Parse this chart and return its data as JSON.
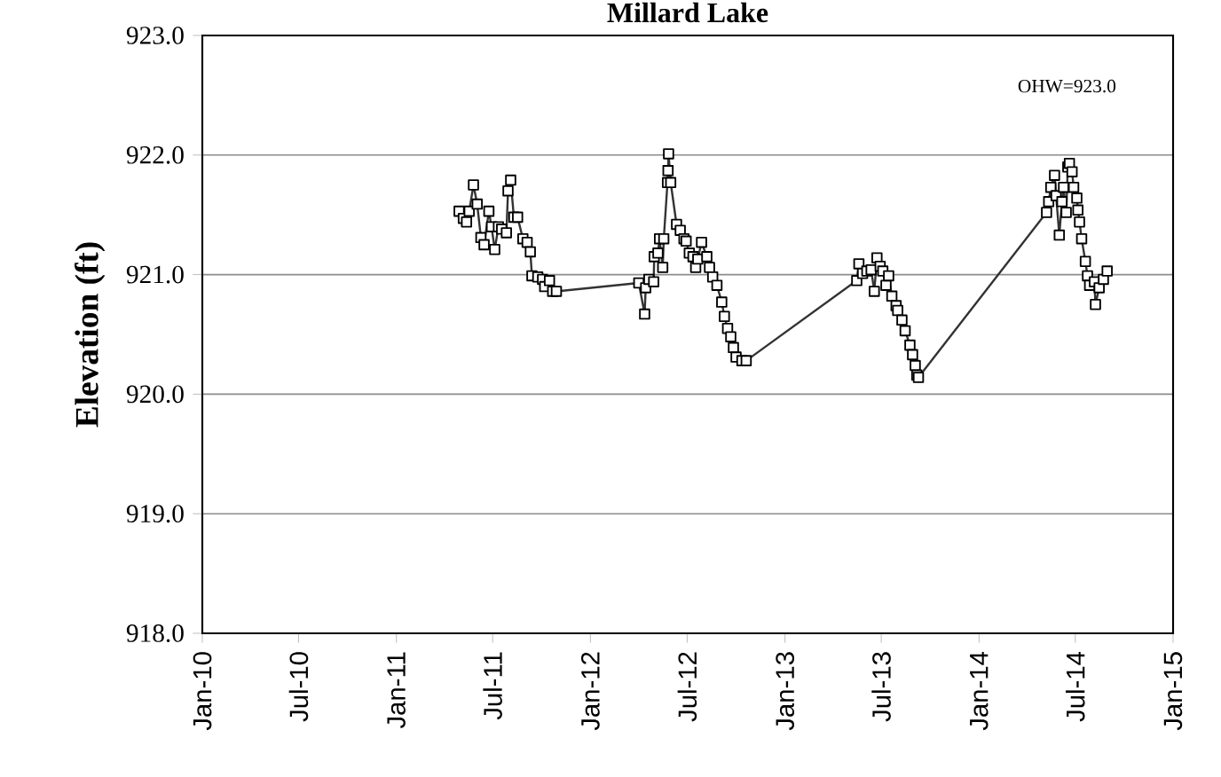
{
  "chart_data": {
    "type": "line",
    "title": "Millard Lake",
    "ylabel": "Elevation (ft)",
    "annotations": [
      "OHW=923.0"
    ],
    "x": [
      "2011-04-29",
      "2011-05-07",
      "2011-05-13",
      "2011-05-18",
      "2011-05-26",
      "2011-06-02",
      "2011-06-09",
      "2011-06-15",
      "2011-06-24",
      "2011-06-29",
      "2011-07-05",
      "2011-07-12",
      "2011-07-18",
      "2011-07-27",
      "2011-07-30",
      "2011-08-04",
      "2011-08-10",
      "2011-08-17",
      "2011-08-27",
      "2011-09-04",
      "2011-09-10",
      "2011-09-13",
      "2011-09-24",
      "2011-10-03",
      "2011-10-07",
      "2011-10-16",
      "2011-10-22",
      "2011-10-29",
      "2012-04-01",
      "2012-04-12",
      "2012-04-14",
      "2012-04-20",
      "2012-04-29",
      "2012-04-30",
      "2012-05-07",
      "2012-05-10",
      "2012-05-16",
      "2012-05-18",
      "2012-05-25",
      "2012-05-26",
      "2012-05-27",
      "2012-05-31",
      "2012-06-11",
      "2012-06-18",
      "2012-06-25",
      "2012-06-29",
      "2012-07-05",
      "2012-07-12",
      "2012-07-17",
      "2012-07-21",
      "2012-07-28",
      "2012-08-07",
      "2012-08-12",
      "2012-08-18",
      "2012-08-26",
      "2012-09-04",
      "2012-09-09",
      "2012-09-15",
      "2012-09-21",
      "2012-09-26",
      "2012-10-01",
      "2012-10-12",
      "2012-10-20",
      "2013-05-16",
      "2013-05-20",
      "2013-05-27",
      "2013-06-04",
      "2013-06-12",
      "2013-06-18",
      "2013-06-23",
      "2013-06-29",
      "2013-07-04",
      "2013-07-10",
      "2013-07-15",
      "2013-07-21",
      "2013-07-29",
      "2013-08-01",
      "2013-08-09",
      "2013-08-15",
      "2013-08-24",
      "2013-08-29",
      "2013-09-03",
      "2013-09-06",
      "2013-09-09",
      "2014-05-08",
      "2014-05-12",
      "2014-05-16",
      "2014-05-23",
      "2014-05-26",
      "2014-06-01",
      "2014-06-06",
      "2014-06-09",
      "2014-06-14",
      "2014-06-17",
      "2014-06-20",
      "2014-06-25",
      "2014-06-28",
      "2014-07-04",
      "2014-07-06",
      "2014-07-09",
      "2014-07-13",
      "2014-07-20",
      "2014-07-24",
      "2014-07-28",
      "2014-08-06",
      "2014-08-08",
      "2014-08-15",
      "2014-08-23",
      "2014-08-30"
    ],
    "values": [
      921.53,
      921.47,
      921.44,
      921.53,
      921.75,
      921.59,
      921.31,
      921.25,
      921.53,
      921.4,
      921.21,
      921.4,
      921.38,
      921.35,
      921.7,
      921.79,
      921.48,
      921.48,
      921.3,
      921.27,
      921.19,
      920.99,
      920.98,
      920.96,
      920.9,
      920.95,
      920.86,
      920.86,
      920.93,
      920.67,
      920.89,
      920.96,
      920.94,
      921.15,
      921.18,
      921.3,
      921.06,
      921.3,
      921.77,
      921.87,
      922.01,
      921.77,
      921.42,
      921.37,
      921.3,
      921.28,
      921.18,
      921.15,
      921.06,
      921.13,
      921.27,
      921.15,
      921.06,
      920.98,
      920.91,
      920.77,
      920.65,
      920.55,
      920.48,
      920.39,
      920.31,
      920.28,
      920.28,
      920.95,
      921.09,
      921.01,
      921.03,
      921.04,
      920.86,
      921.14,
      921.07,
      921.03,
      920.91,
      920.99,
      920.82,
      920.74,
      920.7,
      920.62,
      920.53,
      920.41,
      920.33,
      920.24,
      920.16,
      920.14,
      921.52,
      921.61,
      921.73,
      921.83,
      921.66,
      921.33,
      921.61,
      921.73,
      921.52,
      921.9,
      921.93,
      921.86,
      921.73,
      921.64,
      921.54,
      921.44,
      921.3,
      921.11,
      920.99,
      920.91,
      920.94,
      920.75,
      920.89,
      920.96,
      921.03
    ],
    "color": "#000000",
    "marker": "square",
    "line_style": "solid",
    "grid": "y",
    "xlim": [
      "2010-01-01",
      "2015-01-01"
    ],
    "xticks": [
      {
        "value": "2010-01-01",
        "label": "Jan-10"
      },
      {
        "value": "2010-07-01",
        "label": "Jul-10"
      },
      {
        "value": "2011-01-01",
        "label": "Jan-11"
      },
      {
        "value": "2011-07-01",
        "label": "Jul-11"
      },
      {
        "value": "2012-01-01",
        "label": "Jan-12"
      },
      {
        "value": "2012-07-01",
        "label": "Jul-12"
      },
      {
        "value": "2013-01-01",
        "label": "Jan-13"
      },
      {
        "value": "2013-07-01",
        "label": "Jul-13"
      },
      {
        "value": "2014-01-01",
        "label": "Jan-14"
      },
      {
        "value": "2014-07-01",
        "label": "Jul-14"
      },
      {
        "value": "2015-01-01",
        "label": "Jan-15"
      }
    ],
    "ylim": [
      918,
      923
    ],
    "yticks": [
      {
        "value": 918,
        "label": "918.0"
      },
      {
        "value": 919,
        "label": "919.0"
      },
      {
        "value": 920,
        "label": "920.0"
      },
      {
        "value": 921,
        "label": "921.0"
      },
      {
        "value": 922,
        "label": "922.0"
      },
      {
        "value": 923,
        "label": "923.0"
      }
    ]
  }
}
